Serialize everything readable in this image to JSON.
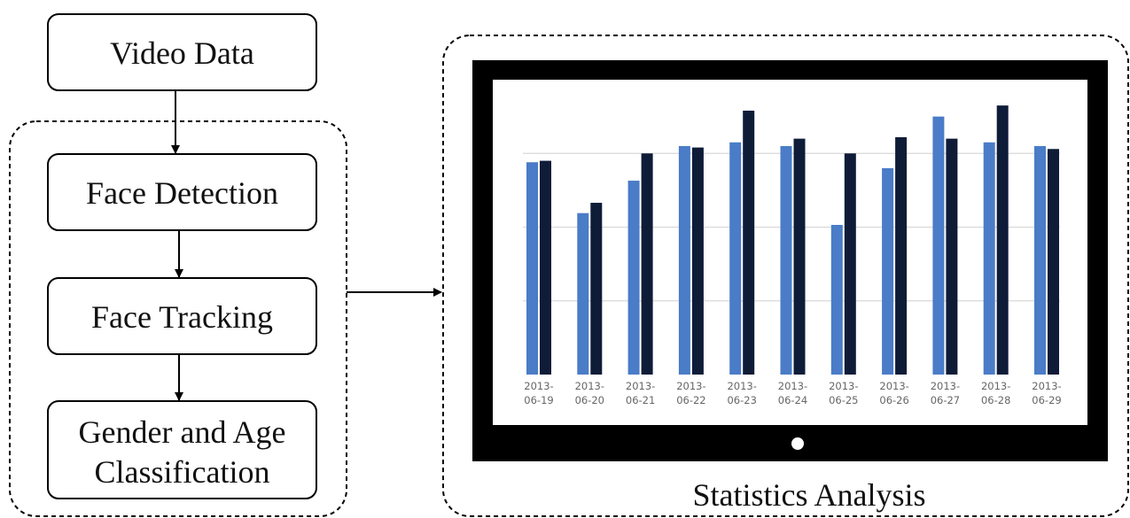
{
  "pipeline": {
    "video_data_label": "Video Data",
    "face_detection_label": "Face Detection",
    "face_tracking_label": "Face Tracking",
    "gender_age_label_line1": "Gender and Age",
    "gender_age_label_line2": "Classification"
  },
  "statistics_label": "Statistics Analysis",
  "colors": {
    "series_a": "#4a7cc7",
    "series_b": "#0f1c38",
    "monitor_frame": "#000000",
    "gridline": "#d9d9d9"
  },
  "chart_data": {
    "type": "bar",
    "categories": [
      "2013-06-19",
      "2013-06-20",
      "2013-06-21",
      "2013-06-22",
      "2013-06-23",
      "2013-06-24",
      "2013-06-25",
      "2013-06-26",
      "2013-06-27",
      "2013-06-28",
      "2013-06-29"
    ],
    "tick_labels": [
      [
        "2013-",
        "06-19"
      ],
      [
        "2013-",
        "06-20"
      ],
      [
        "2013-",
        "06-21"
      ],
      [
        "2013-",
        "06-22"
      ],
      [
        "2013-",
        "06-23"
      ],
      [
        "2013-",
        "06-24"
      ],
      [
        "2013-",
        "06-25"
      ],
      [
        "2013-",
        "06-26"
      ],
      [
        "2013-",
        "06-27"
      ],
      [
        "2013-",
        "06-28"
      ],
      [
        "2013-",
        "06-29"
      ]
    ],
    "series": [
      {
        "values": [
          2.88,
          2.19,
          2.63,
          3.1,
          3.15,
          3.1,
          2.03,
          2.8,
          3.5,
          3.15,
          3.1
        ]
      },
      {
        "values": [
          2.9,
          2.33,
          3.0,
          3.08,
          3.58,
          3.2,
          3.0,
          3.22,
          3.2,
          3.65,
          3.06
        ]
      }
    ],
    "ylim": [
      0,
      4
    ],
    "grid": true,
    "legend": false,
    "title": "",
    "xlabel": "",
    "ylabel": ""
  }
}
